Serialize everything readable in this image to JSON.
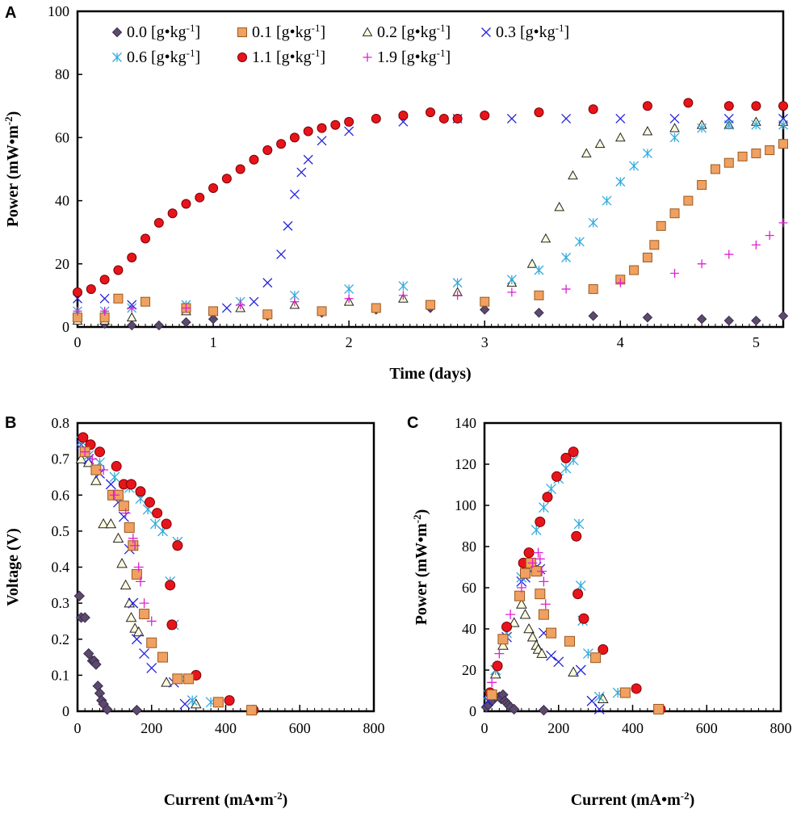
{
  "series_styles": [
    {
      "name": "0.0",
      "marker": "diamond",
      "fill": "#5c4a6e",
      "stroke": "#3b2c4a"
    },
    {
      "name": "0.1",
      "marker": "square",
      "fill": "#f0a060",
      "stroke": "#9a5a20"
    },
    {
      "name": "0.2",
      "marker": "triangle",
      "fill": "#fffbe0",
      "stroke": "#222222"
    },
    {
      "name": "0.3",
      "marker": "x",
      "fill": "none",
      "stroke": "#2222dd"
    },
    {
      "name": "0.6",
      "marker": "star",
      "fill": "none",
      "stroke": "#33aadd"
    },
    {
      "name": "1.1",
      "marker": "circle",
      "fill": "#e8141c",
      "stroke": "#7a0000"
    },
    {
      "name": "1.9",
      "marker": "plus",
      "fill": "none",
      "stroke": "#e020d0"
    }
  ],
  "legend": {
    "entries": [
      {
        "value": "0.0",
        "unit": "[g•kg",
        "sup": "-1",
        "close": "]"
      },
      {
        "value": "0.1",
        "unit": "[g•kg",
        "sup": "-1",
        "close": "]"
      },
      {
        "value": "0.2",
        "unit": "[g•kg",
        "sup": "-1",
        "close": "]"
      },
      {
        "value": "0.3",
        "unit": "[g•kg",
        "sup": "-1",
        "close": "]"
      },
      {
        "value": "0.6",
        "unit": "[g•kg",
        "sup": "-1",
        "close": "]"
      },
      {
        "value": "1.1",
        "unit": "[g•kg",
        "sup": "-1",
        "close": "]"
      },
      {
        "value": "1.9",
        "unit": "[g•kg",
        "sup": "-1",
        "close": "]"
      }
    ]
  },
  "chart_data": [
    {
      "panel": "A",
      "type": "scatter",
      "xlabel": "Time (days)",
      "ylabel": "Power (mW•m",
      "ylabel_sup": "-2",
      "ylabel_close": ")",
      "xlim": [
        0,
        5.2
      ],
      "ylim": [
        0,
        100
      ],
      "xticks": [
        "0",
        "1",
        "2",
        "3",
        "4",
        "5"
      ],
      "yticks": [
        "0",
        "20",
        "40",
        "60",
        "80",
        "100"
      ],
      "series": [
        {
          "name": "0.0",
          "x": [
            0.0,
            0.2,
            0.4,
            0.6,
            0.8,
            1.0,
            1.4,
            1.8,
            2.2,
            2.6,
            3.0,
            3.4,
            3.8,
            4.2,
            4.6,
            4.8,
            5.0,
            5.2
          ],
          "y": [
            2,
            1,
            0.5,
            0.5,
            1.5,
            2.5,
            3.5,
            4.5,
            5.5,
            6,
            5.5,
            4.5,
            3.5,
            3,
            2.5,
            2,
            2,
            3.5
          ]
        },
        {
          "name": "0.1",
          "x": [
            0.0,
            0.2,
            0.3,
            0.5,
            0.8,
            1.0,
            1.4,
            1.8,
            2.2,
            2.6,
            3.0,
            3.4,
            3.8,
            4.0,
            4.1,
            4.2,
            4.25,
            4.3,
            4.4,
            4.5,
            4.6,
            4.7,
            4.8,
            4.9,
            5.0,
            5.1,
            5.2
          ],
          "y": [
            3,
            3,
            9,
            8,
            6,
            5,
            4,
            5,
            6,
            7,
            8,
            10,
            12,
            15,
            18,
            22,
            26,
            32,
            36,
            40,
            45,
            50,
            52,
            54,
            55,
            56,
            58
          ]
        },
        {
          "name": "0.2",
          "x": [
            0.0,
            0.2,
            0.4,
            0.8,
            1.2,
            1.6,
            2.0,
            2.4,
            2.8,
            3.2,
            3.35,
            3.45,
            3.55,
            3.65,
            3.75,
            3.85,
            4.0,
            4.2,
            4.4,
            4.6,
            4.8,
            5.0,
            5.2
          ],
          "y": [
            2,
            2,
            3,
            5,
            6,
            7,
            8,
            9,
            11,
            14,
            20,
            28,
            38,
            48,
            55,
            58,
            60,
            62,
            63,
            64,
            64,
            65,
            65
          ]
        },
        {
          "name": "0.3",
          "x": [
            0.0,
            0.2,
            0.4,
            0.8,
            1.1,
            1.3,
            1.4,
            1.5,
            1.55,
            1.6,
            1.65,
            1.7,
            1.8,
            2.0,
            2.4,
            2.8,
            3.2,
            3.6,
            4.0,
            4.4,
            4.8,
            5.2
          ],
          "y": [
            9,
            9,
            7,
            6,
            6,
            8,
            14,
            23,
            32,
            42,
            49,
            53,
            59,
            62,
            65,
            66,
            66,
            66,
            66,
            66,
            66,
            66
          ]
        },
        {
          "name": "0.6",
          "x": [
            0.0,
            0.2,
            0.4,
            0.8,
            1.2,
            1.6,
            2.0,
            2.4,
            2.8,
            3.2,
            3.4,
            3.6,
            3.7,
            3.8,
            3.9,
            4.0,
            4.1,
            4.2,
            4.4,
            4.6,
            4.8,
            5.0,
            5.2
          ],
          "y": [
            5,
            5,
            6,
            7,
            8,
            10,
            12,
            13,
            14,
            15,
            18,
            22,
            27,
            33,
            40,
            46,
            51,
            55,
            60,
            63,
            64,
            64,
            64
          ]
        },
        {
          "name": "1.1",
          "x": [
            0.0,
            0.1,
            0.2,
            0.3,
            0.4,
            0.5,
            0.6,
            0.7,
            0.8,
            0.9,
            1.0,
            1.1,
            1.2,
            1.3,
            1.4,
            1.5,
            1.6,
            1.7,
            1.8,
            1.9,
            2.0,
            2.2,
            2.4,
            2.6,
            2.7,
            2.8,
            3.0,
            3.4,
            3.8,
            4.2,
            4.5,
            4.8,
            5.0,
            5.2
          ],
          "y": [
            11,
            12,
            15,
            18,
            22,
            28,
            33,
            36,
            39,
            41,
            44,
            47,
            50,
            53,
            56,
            58,
            60,
            62,
            63,
            64,
            65,
            66,
            67,
            68,
            66,
            66,
            67,
            68,
            69,
            70,
            71,
            70,
            70,
            70
          ]
        },
        {
          "name": "1.9",
          "x": [
            0.0,
            0.2,
            0.4,
            0.8,
            1.2,
            1.6,
            2.0,
            2.4,
            2.8,
            3.2,
            3.6,
            4.0,
            4.4,
            4.6,
            4.8,
            5.0,
            5.1,
            5.2
          ],
          "y": [
            5,
            5,
            6,
            6,
            7,
            8,
            9,
            10,
            10,
            11,
            12,
            14,
            17,
            20,
            23,
            26,
            29,
            33
          ]
        }
      ]
    },
    {
      "panel": "B",
      "type": "scatter",
      "xlabel": "Current (mA•m",
      "xlabel_sup": "-2",
      "xlabel_close": ")",
      "ylabel": "Voltage (V)",
      "xlim": [
        0,
        800
      ],
      "ylim": [
        0,
        0.8
      ],
      "xticks": [
        "0",
        "200",
        "400",
        "600",
        "800"
      ],
      "yticks": [
        "0",
        "0.1",
        "0.2",
        "0.3",
        "0.4",
        "0.5",
        "0.6",
        "0.7",
        "0.8"
      ],
      "series": [
        {
          "name": "0.0",
          "x": [
            5,
            10,
            20,
            30,
            40,
            45,
            50,
            55,
            60,
            65,
            70,
            80,
            160
          ],
          "y": [
            0.32,
            0.26,
            0.26,
            0.16,
            0.14,
            0.14,
            0.13,
            0.07,
            0.05,
            0.03,
            0.02,
            0.005,
            0.003
          ]
        },
        {
          "name": "0.1",
          "x": [
            20,
            50,
            95,
            110,
            125,
            140,
            150,
            160,
            180,
            200,
            230,
            270,
            300,
            380,
            470
          ],
          "y": [
            0.72,
            0.67,
            0.6,
            0.6,
            0.57,
            0.51,
            0.46,
            0.38,
            0.27,
            0.19,
            0.15,
            0.09,
            0.09,
            0.025,
            0.003
          ]
        },
        {
          "name": "0.2",
          "x": [
            10,
            30,
            50,
            70,
            90,
            110,
            120,
            130,
            140,
            145,
            155,
            165,
            240,
            320
          ],
          "y": [
            0.7,
            0.69,
            0.64,
            0.52,
            0.52,
            0.48,
            0.41,
            0.35,
            0.3,
            0.26,
            0.23,
            0.22,
            0.08,
            0.02
          ]
        },
        {
          "name": "0.3",
          "x": [
            10,
            30,
            60,
            90,
            110,
            125,
            140,
            150,
            160,
            180,
            200,
            260,
            290
          ],
          "y": [
            0.74,
            0.7,
            0.66,
            0.63,
            0.58,
            0.54,
            0.45,
            0.3,
            0.2,
            0.16,
            0.12,
            0.08,
            0.02
          ]
        },
        {
          "name": "0.6",
          "x": [
            10,
            30,
            60,
            100,
            140,
            170,
            190,
            210,
            230,
            250,
            260,
            270,
            290,
            310,
            360
          ],
          "y": [
            0.75,
            0.71,
            0.69,
            0.65,
            0.62,
            0.59,
            0.56,
            0.52,
            0.5,
            0.36,
            0.24,
            0.47,
            0.09,
            0.03,
            0.025
          ]
        },
        {
          "name": "1.1",
          "x": [
            15,
            35,
            60,
            105,
            125,
            145,
            170,
            195,
            215,
            240,
            250,
            255,
            270,
            320,
            410,
            475
          ],
          "y": [
            0.76,
            0.74,
            0.72,
            0.68,
            0.63,
            0.63,
            0.61,
            0.58,
            0.55,
            0.52,
            0.35,
            0.24,
            0.46,
            0.1,
            0.03,
            0.003
          ]
        },
        {
          "name": "1.9",
          "x": [
            20,
            40,
            70,
            100,
            130,
            150,
            155,
            165,
            170,
            180,
            200
          ],
          "y": [
            0.72,
            0.7,
            0.67,
            0.6,
            0.55,
            0.48,
            0.46,
            0.4,
            0.36,
            0.3,
            0.25
          ]
        }
      ]
    },
    {
      "panel": "C",
      "type": "scatter",
      "xlabel": "Current (mA•m",
      "xlabel_sup": "-2",
      "xlabel_close": ")",
      "ylabel": "Power (mW•m",
      "ylabel_sup": "-2",
      "ylabel_close": ")",
      "xlim": [
        0,
        800
      ],
      "ylim": [
        0,
        140
      ],
      "xticks": [
        "0",
        "200",
        "400",
        "600",
        "800"
      ],
      "yticks": [
        "0",
        "20",
        "40",
        "60",
        "80",
        "100",
        "120",
        "140"
      ],
      "series": [
        {
          "name": "0.0",
          "x": [
            5,
            10,
            20,
            30,
            40,
            45,
            50,
            55,
            60,
            65,
            70,
            80,
            160
          ],
          "y": [
            2,
            3,
            5,
            7,
            7,
            6,
            8,
            5,
            4,
            3,
            2,
            1,
            0.5
          ]
        },
        {
          "name": "0.1",
          "x": [
            20,
            50,
            95,
            110,
            125,
            140,
            150,
            160,
            180,
            230,
            300,
            380,
            470
          ],
          "y": [
            8,
            35,
            56,
            67,
            72,
            68,
            57,
            47,
            38,
            34,
            26,
            9,
            1
          ]
        },
        {
          "name": "0.2",
          "x": [
            30,
            50,
            80,
            100,
            110,
            120,
            130,
            140,
            145,
            155,
            240,
            320
          ],
          "y": [
            18,
            32,
            43,
            52,
            47,
            40,
            36,
            32,
            30,
            28,
            19,
            6
          ]
        },
        {
          "name": "0.3",
          "x": [
            10,
            30,
            60,
            100,
            110,
            125,
            140,
            150,
            160,
            180,
            200,
            260,
            290,
            310
          ],
          "y": [
            5,
            20,
            36,
            63,
            65,
            68,
            70,
            69,
            38,
            27,
            24,
            20,
            5,
            1
          ]
        },
        {
          "name": "0.6",
          "x": [
            10,
            30,
            60,
            100,
            140,
            160,
            180,
            200,
            220,
            240,
            255,
            260,
            265,
            280,
            310,
            360
          ],
          "y": [
            8,
            20,
            38,
            65,
            88,
            99,
            108,
            113,
            118,
            122,
            91,
            61,
            44,
            28,
            7,
            9
          ]
        },
        {
          "name": "1.1",
          "x": [
            15,
            35,
            60,
            105,
            120,
            150,
            170,
            195,
            220,
            240,
            248,
            252,
            268,
            320,
            410,
            475
          ],
          "y": [
            9,
            22,
            41,
            72,
            77,
            92,
            104,
            114,
            123,
            126,
            85,
            57,
            45,
            30,
            11,
            1
          ]
        },
        {
          "name": "1.9",
          "x": [
            20,
            40,
            70,
            100,
            130,
            145,
            150,
            155,
            160,
            165
          ],
          "y": [
            14,
            28,
            47,
            60,
            72,
            77,
            74,
            68,
            63,
            52
          ]
        }
      ]
    }
  ]
}
